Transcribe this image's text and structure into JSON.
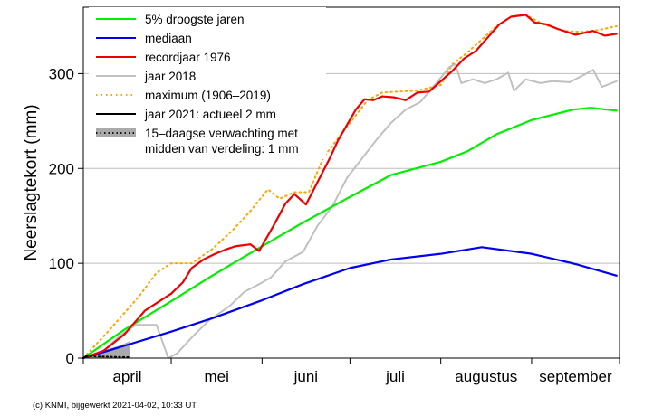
{
  "chart_data": {
    "type": "line",
    "ylabel": "Neerslagtekort (mm)",
    "xlabel": "",
    "ylim": [
      0,
      370
    ],
    "yticks": [
      0,
      100,
      200,
      300
    ],
    "grid": true,
    "legend_position": "top-left",
    "x_unit": "date (April–September)",
    "month_labels": [
      "april",
      "mei",
      "juni",
      "juli",
      "augustus",
      "september"
    ],
    "footer": "(c) KNMI, bijgewerkt 2021-04-02, 10:33 UT",
    "series": [
      {
        "name": "5% droogste jaren",
        "color": "#00ee00",
        "style": "solid",
        "points": [
          [
            "04-01",
            0
          ],
          [
            "04-15",
            30
          ],
          [
            "05-01",
            60
          ],
          [
            "05-15",
            87
          ],
          [
            "06-01",
            118
          ],
          [
            "06-15",
            143
          ],
          [
            "07-01",
            170
          ],
          [
            "07-15",
            193
          ],
          [
            "08-01",
            207
          ],
          [
            "08-10",
            218
          ],
          [
            "08-20",
            236
          ],
          [
            "09-01",
            251
          ],
          [
            "09-15",
            262
          ],
          [
            "09-21",
            264
          ],
          [
            "09-30",
            261
          ]
        ]
      },
      {
        "name": "mediaan",
        "color": "#0000ee",
        "style": "solid",
        "points": [
          [
            "04-01",
            0
          ],
          [
            "04-15",
            13
          ],
          [
            "05-01",
            28
          ],
          [
            "05-15",
            42
          ],
          [
            "06-01",
            61
          ],
          [
            "06-15",
            78
          ],
          [
            "07-01",
            95
          ],
          [
            "07-15",
            104
          ],
          [
            "08-01",
            110
          ],
          [
            "08-15",
            117
          ],
          [
            "09-01",
            110
          ],
          [
            "09-15",
            100
          ],
          [
            "09-30",
            87
          ]
        ]
      },
      {
        "name": "recordjaar 1976",
        "color": "#ee0000",
        "style": "solid",
        "points": [
          [
            "04-01",
            0
          ],
          [
            "04-08",
            8
          ],
          [
            "04-15",
            25
          ],
          [
            "04-22",
            50
          ],
          [
            "04-28",
            62
          ],
          [
            "05-01",
            68
          ],
          [
            "05-05",
            80
          ],
          [
            "05-08",
            95
          ],
          [
            "05-12",
            104
          ],
          [
            "05-16",
            110
          ],
          [
            "05-20",
            115
          ],
          [
            "05-23",
            118
          ],
          [
            "05-28",
            120
          ],
          [
            "05-31",
            113
          ],
          [
            "06-05",
            140
          ],
          [
            "06-09",
            163
          ],
          [
            "06-12",
            173
          ],
          [
            "06-16",
            162
          ],
          [
            "06-20",
            186
          ],
          [
            "06-24",
            210
          ],
          [
            "06-27",
            230
          ],
          [
            "06-30",
            246
          ],
          [
            "07-03",
            262
          ],
          [
            "07-06",
            273
          ],
          [
            "07-09",
            272
          ],
          [
            "07-12",
            276
          ],
          [
            "07-16",
            275
          ],
          [
            "07-20",
            272
          ],
          [
            "07-24",
            280
          ],
          [
            "07-28",
            281
          ],
          [
            "08-01",
            292
          ],
          [
            "08-05",
            303
          ],
          [
            "08-09",
            316
          ],
          [
            "08-13",
            324
          ],
          [
            "08-17",
            338
          ],
          [
            "08-21",
            352
          ],
          [
            "08-25",
            360
          ],
          [
            "08-30",
            362
          ],
          [
            "09-02",
            354
          ],
          [
            "09-06",
            352
          ],
          [
            "09-10",
            347
          ],
          [
            "09-16",
            341
          ],
          [
            "09-22",
            345
          ],
          [
            "09-26",
            340
          ],
          [
            "09-30",
            342
          ]
        ]
      },
      {
        "name": "jaar 2018",
        "color": "#c0c0c0",
        "style": "solid",
        "points": [
          [
            "04-01",
            0
          ],
          [
            "04-07",
            5
          ],
          [
            "04-14",
            25
          ],
          [
            "04-19",
            35
          ],
          [
            "04-26",
            35
          ],
          [
            "04-30",
            0
          ],
          [
            "05-03",
            5
          ],
          [
            "05-09",
            25
          ],
          [
            "05-14",
            40
          ],
          [
            "05-21",
            55
          ],
          [
            "05-26",
            70
          ],
          [
            "05-31",
            78
          ],
          [
            "06-04",
            85
          ],
          [
            "06-09",
            102
          ],
          [
            "06-15",
            112
          ],
          [
            "06-20",
            140
          ],
          [
            "06-25",
            160
          ],
          [
            "06-30",
            190
          ],
          [
            "07-05",
            210
          ],
          [
            "07-10",
            230
          ],
          [
            "07-15",
            248
          ],
          [
            "07-20",
            262
          ],
          [
            "07-25",
            270
          ],
          [
            "07-31",
            292
          ],
          [
            "08-04",
            307
          ],
          [
            "08-06",
            310
          ],
          [
            "08-08",
            290
          ],
          [
            "08-12",
            294
          ],
          [
            "08-16",
            290
          ],
          [
            "08-20",
            294
          ],
          [
            "08-24",
            301
          ],
          [
            "08-26",
            282
          ],
          [
            "08-30",
            294
          ],
          [
            "09-04",
            290
          ],
          [
            "09-08",
            292
          ],
          [
            "09-14",
            291
          ],
          [
            "09-19",
            299
          ],
          [
            "09-22",
            304
          ],
          [
            "09-25",
            286
          ],
          [
            "09-30",
            292
          ]
        ]
      },
      {
        "name": "maximum (1906–2019)",
        "color": "#ffa500",
        "style": "dotted",
        "points": [
          [
            "04-01",
            0
          ],
          [
            "04-10",
            30
          ],
          [
            "04-20",
            65
          ],
          [
            "04-26",
            90
          ],
          [
            "05-01",
            100
          ],
          [
            "05-08",
            100
          ],
          [
            "05-15",
            115
          ],
          [
            "05-22",
            135
          ],
          [
            "05-28",
            155
          ],
          [
            "06-03",
            178
          ],
          [
            "06-07",
            168
          ],
          [
            "06-12",
            175
          ],
          [
            "06-17",
            175
          ],
          [
            "06-22",
            212
          ],
          [
            "06-27",
            232
          ],
          [
            "07-02",
            252
          ],
          [
            "07-07",
            272
          ],
          [
            "07-12",
            280
          ],
          [
            "07-17",
            281
          ],
          [
            "07-24",
            282
          ],
          [
            "08-01",
            288
          ],
          [
            "08-05",
            310
          ],
          [
            "08-10",
            322
          ],
          [
            "08-15",
            336
          ],
          [
            "08-20",
            350
          ],
          [
            "08-25",
            360
          ],
          [
            "08-30",
            362
          ],
          [
            "09-05",
            352
          ],
          [
            "09-12",
            345
          ],
          [
            "09-18",
            344
          ],
          [
            "09-24",
            346
          ],
          [
            "09-30",
            350
          ]
        ]
      },
      {
        "name": "jaar 2021: actueel 2 mm",
        "color": "#000000",
        "style": "solid",
        "points": [
          [
            "04-01",
            0
          ],
          [
            "04-02",
            2
          ]
        ]
      },
      {
        "name": "15–daagse verwachting met midden van verdeling: 1 mm",
        "color": "#000000",
        "band_color": "#aaaaaa",
        "style": "dotted-with-band",
        "points": [
          [
            "04-02",
            2
          ],
          [
            "04-17",
            1
          ]
        ],
        "band": [
          [
            "04-02",
            0,
            2
          ],
          [
            "04-06",
            0,
            6
          ],
          [
            "04-10",
            0,
            10
          ],
          [
            "04-14",
            0,
            14
          ],
          [
            "04-17",
            0,
            18
          ]
        ]
      }
    ]
  }
}
